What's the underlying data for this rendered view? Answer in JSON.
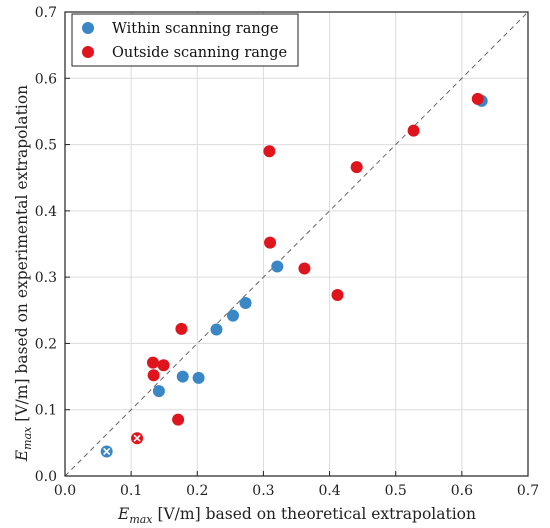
{
  "chart_data": {
    "type": "scatter",
    "xlabel": {
      "var": "E",
      "sub": "max",
      "rest": " [V/m] based on theoretical extrapolation"
    },
    "ylabel": {
      "var": "E",
      "sub": "max",
      "rest": " [V/m] based on experimental extrapolation"
    },
    "xlim": [
      0,
      0.7
    ],
    "ylim": [
      0,
      0.7
    ],
    "xticks": [
      "0.0",
      "0.1",
      "0.2",
      "0.3",
      "0.4",
      "0.5",
      "0.6",
      "0.7"
    ],
    "yticks": [
      "0.0",
      "0.1",
      "0.2",
      "0.3",
      "0.4",
      "0.5",
      "0.6",
      "0.7"
    ],
    "grid": true,
    "reference_line": "y = x (dashed)",
    "legend_position": "top-left",
    "series": [
      {
        "name": "Within scanning range",
        "color": "#3a87c6",
        "points": [
          [
            0.063,
            0.037,
            "x"
          ],
          [
            0.142,
            0.128
          ],
          [
            0.178,
            0.15
          ],
          [
            0.202,
            0.148
          ],
          [
            0.229,
            0.221
          ],
          [
            0.254,
            0.242
          ],
          [
            0.273,
            0.261
          ],
          [
            0.321,
            0.316
          ],
          [
            0.63,
            0.566
          ]
        ]
      },
      {
        "name": "Outside scanning range",
        "color": "#e0141c",
        "points": [
          [
            0.109,
            0.057,
            "x"
          ],
          [
            0.133,
            0.171
          ],
          [
            0.134,
            0.152
          ],
          [
            0.149,
            0.167
          ],
          [
            0.171,
            0.085
          ],
          [
            0.176,
            0.222
          ],
          [
            0.309,
            0.49
          ],
          [
            0.31,
            0.352
          ],
          [
            0.362,
            0.313
          ],
          [
            0.412,
            0.273
          ],
          [
            0.441,
            0.466
          ],
          [
            0.527,
            0.521
          ],
          [
            0.624,
            0.569
          ]
        ]
      }
    ]
  }
}
